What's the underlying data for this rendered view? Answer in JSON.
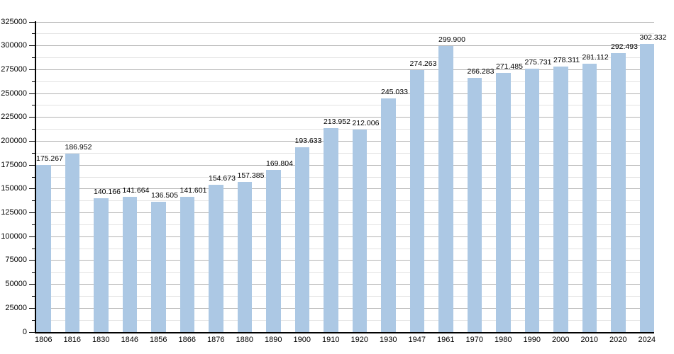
{
  "chart_data": {
    "type": "bar",
    "title": "",
    "xlabel": "",
    "ylabel": "",
    "categories": [
      "1806",
      "1816",
      "1830",
      "1846",
      "1856",
      "1866",
      "1876",
      "1880",
      "1890",
      "1900",
      "1910",
      "1920",
      "1930",
      "1947",
      "1961",
      "1970",
      "1980",
      "1990",
      "2000",
      "2010",
      "2020",
      "2024"
    ],
    "values": [
      175267,
      186952,
      140166,
      141664,
      136505,
      141601,
      154673,
      157385,
      169804,
      193633,
      213952,
      212006,
      245033,
      274263,
      299900,
      266283,
      271485,
      275731,
      278311,
      281112,
      292493,
      302332
    ],
    "value_labels": [
      "175.267",
      "186.952",
      "140.166",
      "141.664",
      "136.505",
      "141.601",
      "154.673",
      "157.385",
      "169.804",
      "193.633",
      "213.952",
      "212.006",
      "245.033",
      "274.263",
      "299.900",
      "266.283",
      "271.485",
      "275.731",
      "278.311",
      "281.112",
      "292.493",
      "302.332"
    ],
    "ylim": [
      0,
      325000
    ],
    "y_tick_labels": [
      "0",
      "25000",
      "50000",
      "75000",
      "100000",
      "125000",
      "150000",
      "175000",
      "200000",
      "225000",
      "250000",
      "275000",
      "300000",
      "325000"
    ],
    "y_major_step": 25000,
    "y_minor_step": 12500,
    "grid": "on",
    "legend": "none",
    "colors": {
      "bar": "#acc8e4",
      "grid_major": "#b3b3b3",
      "grid_minor": "#e3e3e3",
      "axis": "#000000",
      "text": "#000000",
      "background": "#ffffff"
    }
  }
}
